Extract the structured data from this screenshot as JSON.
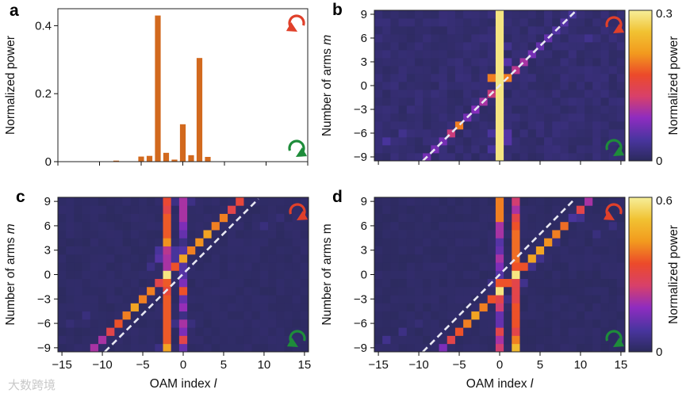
{
  "colors": {
    "bar": "#d2691e",
    "cw_arrow": "#e0402a",
    "ccw_arrow": "#1e8c3a",
    "diag_line": "#e8e8f2",
    "background_cell": "#2b2a5c"
  },
  "colormap": [
    "#2b2a5c",
    "#4a35a0",
    "#8e2cc0",
    "#d8406a",
    "#ec4a2a",
    "#f29a1e",
    "#f1c232",
    "#f6ef9a"
  ],
  "watermark": "大数跨境",
  "chart_data": [
    {
      "panel": "a",
      "type": "bar",
      "ylabel": "Normalized power",
      "xlabel": "",
      "xlim": [
        -15,
        15
      ],
      "ylim": [
        0,
        0.45
      ],
      "xticks": [
        -15,
        -10,
        -5,
        0,
        5,
        10,
        15
      ],
      "yticks": [
        {
          "v": 0,
          "label": "0"
        },
        {
          "v": 0.2,
          "label": "0.2"
        },
        {
          "v": 0.4,
          "label": "0.4"
        }
      ],
      "x": [
        -8,
        -5,
        -4,
        -3,
        -2,
        -1,
        0,
        1,
        2,
        3,
        7
      ],
      "values": [
        0.003,
        0.015,
        0.017,
        0.43,
        0.026,
        0.006,
        0.11,
        0.019,
        0.305,
        0.014,
        0.001
      ],
      "icons": {
        "top": "counterclockwise-arrow",
        "bottom": "clockwise-arrow"
      }
    },
    {
      "panel": "b",
      "type": "heatmap",
      "ylabel": "Number of arms m",
      "xlabel": "",
      "xlim": [
        -15,
        15
      ],
      "ylim": [
        -9,
        9
      ],
      "xticks": [
        -15,
        -10,
        -5,
        0,
        5,
        10,
        15
      ],
      "show_xtick_labels": false,
      "yticks": [
        9,
        6,
        3,
        0,
        -3,
        -6,
        -9
      ],
      "colorbar": {
        "label": "Normalized power",
        "min": 0,
        "max": 0.3,
        "min_label": "0",
        "max_label": "0.3"
      },
      "background": 0.012,
      "vertical_lines": [
        {
          "l": 0,
          "values_by_m": [
            0.29,
            0.29,
            0.29,
            0.29,
            0.29,
            0.29,
            0.29,
            0.29,
            0.29,
            0.29,
            0.29,
            0.29,
            0.29,
            0.29,
            0.29,
            0.29,
            0.29,
            0.29,
            0.29
          ]
        }
      ],
      "diagonal": {
        "offset": 0,
        "values_by_m": [
          0.07,
          0.07,
          0.07,
          0.12,
          0.2,
          0.07,
          0.08,
          0.1,
          0.12,
          0.29,
          0.2,
          0.11,
          0.1,
          0.07,
          0.06,
          0.06,
          0.05,
          0.05,
          0.04
        ]
      },
      "extra_cells": [
        [
          -1,
          1,
          0.2
        ],
        [
          1,
          -7,
          0.05
        ],
        [
          1,
          -6,
          0.05
        ],
        [
          1,
          3,
          0.05
        ],
        [
          1,
          5,
          0.03
        ],
        [
          -1,
          -8,
          0.04
        ],
        [
          -1,
          -6,
          0.04
        ],
        [
          -14,
          -7,
          0.04
        ],
        [
          -12,
          -6,
          0.03
        ],
        [
          11,
          6,
          0.03
        ]
      ],
      "dashed_line": {
        "from": [
          -9.5,
          -9.5
        ],
        "to": [
          9.3,
          9.3
        ]
      },
      "icons": {
        "top": "clockwise-arrow",
        "bottom": "clockwise-arrow"
      }
    },
    {
      "panel": "c",
      "type": "heatmap",
      "ylabel": "Number of arms m",
      "xlabel": "OAM index l",
      "xlim": [
        -15,
        15
      ],
      "ylim": [
        -9,
        9
      ],
      "xticks": [
        -15,
        -10,
        -5,
        0,
        5,
        10,
        15
      ],
      "show_xtick_labels": true,
      "yticks": [
        9,
        6,
        3,
        0,
        -3,
        -6,
        -9
      ],
      "colorscale_max": 0.6,
      "background": 0.012,
      "vertical_lines": [
        {
          "l": -2,
          "values_by_m": [
            0.45,
            0.36,
            0.36,
            0.36,
            0.36,
            0.36,
            0.36,
            0.32,
            0.36,
            0.58,
            0.2,
            0.2,
            0.22,
            0.42,
            0.36,
            0.36,
            0.36,
            0.3,
            0.33
          ]
        },
        {
          "l": 0,
          "values_by_m": [
            0.12,
            0.3,
            0.15,
            0.2,
            0.05,
            0.18,
            0.12,
            0.35,
            0.15,
            0.1,
            0.1,
            0.45,
            0.1,
            0.05,
            0.12,
            0.15,
            0.2,
            0.2,
            0.2
          ]
        }
      ],
      "diagonal": {
        "offset": 2,
        "values_by_m": [
          0.2,
          0.2,
          0.3,
          0.35,
          0.4,
          0.45,
          0.4,
          0.4,
          0.3,
          0.58,
          0.35,
          0.45,
          0.4,
          0.42,
          0.45,
          0.4,
          0.4,
          0.3,
          0.32
        ]
      },
      "extra_cells": [
        [
          -3,
          2,
          0.1
        ],
        [
          -3,
          3,
          0.08
        ],
        [
          -1,
          3,
          0.08
        ],
        [
          -1,
          2,
          0.08
        ],
        [
          -4,
          1,
          0.05
        ],
        [
          -12,
          -5,
          0.04
        ],
        [
          -14,
          -6,
          0.03
        ],
        [
          10,
          6,
          0.04
        ],
        [
          12,
          7,
          0.03
        ],
        [
          1,
          9,
          0.05
        ],
        [
          -1,
          9,
          0.05
        ],
        [
          -3,
          -9,
          0.05
        ],
        [
          -1,
          -6,
          0.05
        ],
        [
          1,
          -6,
          0.04
        ]
      ],
      "dashed_line": {
        "from": [
          -9.7,
          -9.5
        ],
        "to": [
          9.3,
          9.3
        ]
      },
      "icons": {
        "top": "clockwise-arrow",
        "bottom": "counterclockwise-arrow"
      }
    },
    {
      "panel": "d",
      "type": "heatmap",
      "ylabel": "Number of arms m",
      "xlabel": "OAM index l",
      "xlim": [
        -15,
        15
      ],
      "ylim": [
        -9,
        9
      ],
      "xticks": [
        -15,
        -10,
        -5,
        0,
        5,
        10,
        15
      ],
      "show_xtick_labels": true,
      "yticks": [
        9,
        6,
        3,
        0,
        -3,
        -6,
        -9
      ],
      "colorbar": {
        "label": "Normalized power",
        "min": 0,
        "max": 0.6,
        "min_label": "0",
        "max_label": "0.6"
      },
      "background": 0.012,
      "vertical_lines": [
        {
          "l": 0,
          "values_by_m": [
            0.25,
            0.2,
            0.3,
            0.12,
            0.12,
            0.25,
            0.3,
            0.58,
            0.35,
            0.1,
            0.15,
            0.2,
            0.12,
            0.1,
            0.2,
            0.2,
            0.4,
            0.4,
            0.4
          ]
        },
        {
          "l": 2,
          "values_by_m": [
            0.5,
            0.4,
            0.3,
            0.35,
            0.35,
            0.35,
            0.3,
            0.3,
            0.3,
            0.58,
            0.35,
            0.38,
            0.38,
            0.38,
            0.38,
            0.35,
            0.3,
            0.2,
            0.25
          ]
        }
      ],
      "diagonal": {
        "offset": -2,
        "values_by_m": [
          0.15,
          0.3,
          0.35,
          0.4,
          0.45,
          0.4,
          0.35,
          0.58,
          0.35,
          0.58,
          0.35,
          0.45,
          0.45,
          0.42,
          0.4,
          0.38,
          0.1,
          0.3,
          0.2
        ]
      },
      "extra_cells": [
        [
          -14,
          -8,
          0.06
        ],
        [
          -12,
          -7,
          0.05
        ],
        [
          -10,
          -6,
          0.03
        ],
        [
          3,
          -1,
          0.06
        ],
        [
          4,
          1,
          0.06
        ],
        [
          5,
          2,
          0.06
        ],
        [
          7,
          4,
          0.04
        ],
        [
          9,
          7,
          0.08
        ],
        [
          10,
          7,
          0.06
        ],
        [
          14,
          6,
          0.04
        ],
        [
          12,
          5,
          0.04
        ],
        [
          -1,
          -1,
          0.05
        ],
        [
          1,
          -3,
          0.05
        ]
      ],
      "dashed_line": {
        "from": [
          -9.5,
          -9.5
        ],
        "to": [
          9.2,
          9.2
        ]
      },
      "icons": {
        "top": "counterclockwise-arrow",
        "bottom": "clockwise-arrow"
      }
    }
  ]
}
